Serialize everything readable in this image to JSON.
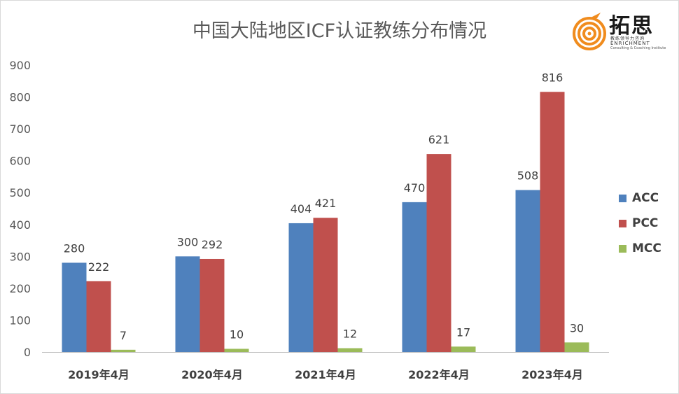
{
  "title": "中国大陆地区ICF认证教练分布情况",
  "logo": {
    "name_cn": "拓思",
    "tagline_cn": "教练领导力咨询",
    "name_en": "ENRICHMENT",
    "tagline_en": "Consulting & Coaching Institute"
  },
  "colors": {
    "ACC": "#4f81bd",
    "PCC": "#c0504d",
    "MCC": "#9bbb59",
    "logo_orange": "#f08c1e"
  },
  "chart_data": {
    "type": "bar",
    "title": "中国大陆地区ICF认证教练分布情况",
    "categories": [
      "2019年4月",
      "2020年4月",
      "2021年4月",
      "2022年4月",
      "2023年4月"
    ],
    "series": [
      {
        "name": "ACC",
        "values": [
          280,
          300,
          404,
          470,
          508
        ]
      },
      {
        "name": "PCC",
        "values": [
          222,
          292,
          421,
          621,
          816
        ]
      },
      {
        "name": "MCC",
        "values": [
          7,
          10,
          12,
          17,
          30
        ]
      }
    ],
    "yticks": [
      "0",
      "100",
      "200",
      "300",
      "400",
      "500",
      "600",
      "700",
      "800",
      "900"
    ],
    "ylim": [
      0,
      900
    ],
    "grid": false,
    "legend_position": "right",
    "data_labels": true
  }
}
